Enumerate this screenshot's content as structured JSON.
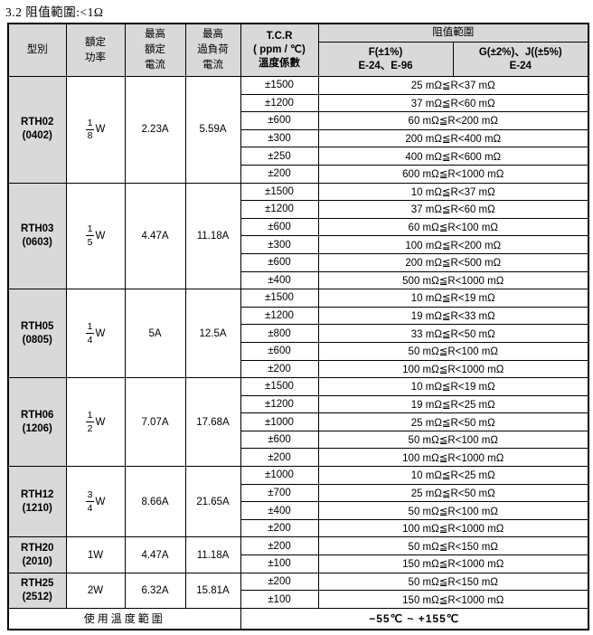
{
  "page": {
    "title": "3.2 阻值範圍:<1Ω"
  },
  "colors": {
    "header_bg": "#d9d9d9",
    "border": "#000000",
    "text": "#000000"
  },
  "table": {
    "header": {
      "type": "型別",
      "rated_power": "額定\n功率",
      "max_rated_current": "最高\n額定\n電流",
      "max_overload_current": "最高\n過負荷\n電流",
      "tcr": "T.C.R\n( ppm / ℃)\n溫度係數",
      "resistance_range": "阻值範圍",
      "tolerance_f": "F(±1%)\nE-24、E-96",
      "tolerance_g": "G(±2%)、J((±5%)\nE-24"
    },
    "rows": [
      {
        "model": "RTH02",
        "package": "(0402)",
        "power_frac": {
          "num": "1",
          "den": "8"
        },
        "power_unit": "W",
        "rated_current": "2.23A",
        "overload_current": "5.59A",
        "specs": [
          {
            "tcr": "±1500",
            "range": "25 mΩ≦R<37 mΩ"
          },
          {
            "tcr": "±1200",
            "range": "37 mΩ≦R<60 mΩ"
          },
          {
            "tcr": "±600",
            "range": "60 mΩ≦R<200 mΩ"
          },
          {
            "tcr": "±300",
            "range": "200 mΩ≦R<400 mΩ"
          },
          {
            "tcr": "±250",
            "range": "400 mΩ≦R<600 mΩ"
          },
          {
            "tcr": "±200",
            "range": "600 mΩ≦R<1000 mΩ"
          }
        ]
      },
      {
        "model": "RTH03",
        "package": "(0603)",
        "power_frac": {
          "num": "1",
          "den": "5"
        },
        "power_unit": "W",
        "rated_current": "4.47A",
        "overload_current": "11.18A",
        "specs": [
          {
            "tcr": "±1500",
            "range": "10 mΩ≦R<37 mΩ"
          },
          {
            "tcr": "±1200",
            "range": "37 mΩ≦R<60 mΩ"
          },
          {
            "tcr": "±600",
            "range": "60 mΩ≦R<100 mΩ"
          },
          {
            "tcr": "±300",
            "range": "100 mΩ≦R<200 mΩ"
          },
          {
            "tcr": "±600",
            "range": "200 mΩ≦R<500 mΩ"
          },
          {
            "tcr": "±400",
            "range": "500 mΩ≦R<1000 mΩ"
          }
        ]
      },
      {
        "model": "RTH05",
        "package": "(0805)",
        "power_frac": {
          "num": "1",
          "den": "4"
        },
        "power_unit": "W",
        "rated_current": "5A",
        "overload_current": "12.5A",
        "specs": [
          {
            "tcr": "±1500",
            "range": "10 mΩ≦R<19 mΩ"
          },
          {
            "tcr": "±1200",
            "range": "19 mΩ≦R<33 mΩ"
          },
          {
            "tcr": "±800",
            "range": "33 mΩ≦R<50 mΩ"
          },
          {
            "tcr": "±600",
            "range": "50 mΩ≦R<100 mΩ"
          },
          {
            "tcr": "±200",
            "range": "100 mΩ≦R<1000 mΩ"
          }
        ]
      },
      {
        "model": "RTH06",
        "package": "(1206)",
        "power_frac": {
          "num": "1",
          "den": "2"
        },
        "power_unit": "W",
        "rated_current": "7.07A",
        "overload_current": "17.68A",
        "specs": [
          {
            "tcr": "±1500",
            "range": "10 mΩ≦R<19 mΩ"
          },
          {
            "tcr": "±1200",
            "range": "19 mΩ≦R<25 mΩ"
          },
          {
            "tcr": "±1000",
            "range": "25 mΩ≦R<50 mΩ"
          },
          {
            "tcr": "±600",
            "range": "50 mΩ≦R<100 mΩ"
          },
          {
            "tcr": "±200",
            "range": "100 mΩ≦R<1000 mΩ"
          }
        ]
      },
      {
        "model": "RTH12",
        "package": "(1210)",
        "power_frac": {
          "num": "3",
          "den": "4"
        },
        "power_unit": "W",
        "rated_current": "8.66A",
        "overload_current": "21.65A",
        "specs": [
          {
            "tcr": "±1000",
            "range": "10 mΩ≦R<25 mΩ"
          },
          {
            "tcr": "±700",
            "range": "25 mΩ≦R<50 mΩ"
          },
          {
            "tcr": "±400",
            "range": "50 mΩ≦R<100 mΩ"
          },
          {
            "tcr": "±200",
            "range": "100 mΩ≦R<1000 mΩ"
          }
        ]
      },
      {
        "model": "RTH20",
        "package": "(2010)",
        "power_text": "1W",
        "rated_current": "4.47A",
        "overload_current": "11.18A",
        "specs": [
          {
            "tcr": "±200",
            "range": "50 mΩ≦R<150 mΩ"
          },
          {
            "tcr": "±100",
            "range": "150 mΩ≦R<1000 mΩ"
          }
        ]
      },
      {
        "model": "RTH25",
        "package": "(2512)",
        "power_text": "2W",
        "rated_current": "6.32A",
        "overload_current": "15.81A",
        "specs": [
          {
            "tcr": "±200",
            "range": "50 mΩ≦R<150 mΩ"
          },
          {
            "tcr": "±100",
            "range": "150 mΩ≦R<1000 mΩ"
          }
        ]
      }
    ],
    "footer": {
      "label": "使用溫度範圍",
      "value": "−55℃ ~ +155℃"
    }
  }
}
